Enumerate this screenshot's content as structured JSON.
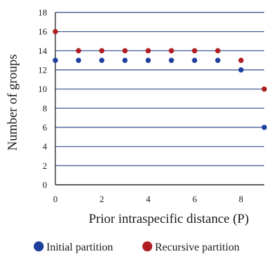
{
  "chart_data": {
    "type": "scatter",
    "title": "",
    "xlabel": "Prior intraspecific distance (P)",
    "ylabel": "Number of groups",
    "xlim": [
      0,
      9
    ],
    "ylim": [
      0,
      18
    ],
    "x_ticks": [
      "0",
      "2",
      "4",
      "6",
      "8"
    ],
    "y_ticks": [
      "0",
      "2",
      "4",
      "6",
      "8",
      "10",
      "12",
      "14",
      "16",
      "18"
    ],
    "grid": "horizontal",
    "legend_position": "bottom",
    "series": [
      {
        "name": "Initial partition",
        "color": "#1f3f9e",
        "points": [
          [
            0,
            13
          ],
          [
            1,
            13
          ],
          [
            2,
            13
          ],
          [
            3,
            13
          ],
          [
            4,
            13
          ],
          [
            5,
            13
          ],
          [
            6,
            13
          ],
          [
            7,
            13
          ],
          [
            8,
            12
          ],
          [
            9,
            6
          ]
        ]
      },
      {
        "name": "Recursive partition",
        "color": "#b01e23",
        "points": [
          [
            0,
            16
          ],
          [
            1,
            14
          ],
          [
            2,
            14
          ],
          [
            3,
            14
          ],
          [
            4,
            14
          ],
          [
            5,
            14
          ],
          [
            6,
            14
          ],
          [
            7,
            14
          ],
          [
            8,
            13
          ],
          [
            9,
            10
          ]
        ]
      }
    ]
  }
}
